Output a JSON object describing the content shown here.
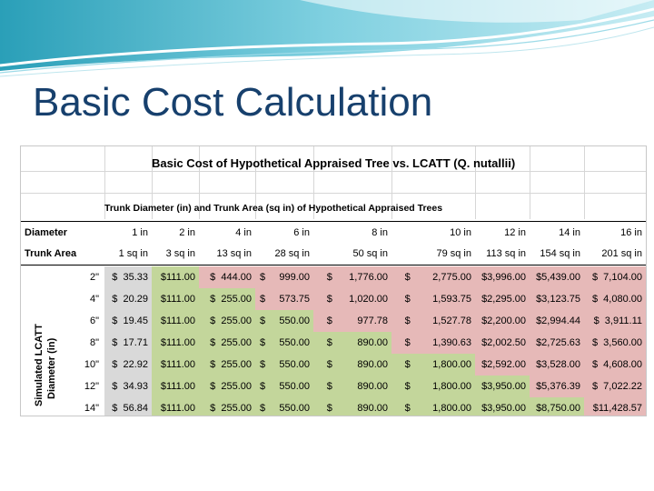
{
  "slide": {
    "title": "Basic Cost Calculation"
  },
  "table": {
    "title": "Basic Cost of Hypothetical Appraised Tree vs. LCATT (Q. nutallii)",
    "subtitle": "Trunk Diameter (in) and Trunk Area (sq in) of Hypothetical Appraised Trees",
    "diameter_label": "Diameter",
    "area_label": "Trunk Area",
    "row_axis_label_line1": "Simulated LCATT",
    "row_axis_label_line2": "Diameter (in)",
    "diameters": [
      "1 in",
      "2 in",
      "4 in",
      "6 in",
      "8 in",
      "10 in",
      "12 in",
      "14 in",
      "16 in"
    ],
    "areas": [
      "1 sq in",
      "3 sq in",
      "13 sq in",
      "28 sq in",
      "50 sq in",
      "79 sq in",
      "113 sq in",
      "154 sq in",
      "201 sq in"
    ],
    "rows": [
      {
        "label": "2\"",
        "cells": [
          "$  35.33",
          "$111.00",
          "$  444.00",
          "$     999.00",
          "$      1,776.00",
          "$        2,775.00",
          "$3,996.00",
          "$5,439.00",
          "$  7,104.00"
        ]
      },
      {
        "label": "4\"",
        "cells": [
          "$  20.29",
          "$111.00",
          "$  255.00",
          "$     573.75",
          "$      1,020.00",
          "$        1,593.75",
          "$2,295.00",
          "$3,123.75",
          "$  4,080.00"
        ]
      },
      {
        "label": "6\"",
        "cells": [
          "$  19.45",
          "$111.00",
          "$  255.00",
          "$     550.00",
          "$         977.78",
          "$        1,527.78",
          "$2,200.00",
          "$2,994.44",
          "$  3,911.11"
        ]
      },
      {
        "label": "8\"",
        "cells": [
          "$  17.71",
          "$111.00",
          "$  255.00",
          "$     550.00",
          "$         890.00",
          "$        1,390.63",
          "$2,002.50",
          "$2,725.63",
          "$  3,560.00"
        ]
      },
      {
        "label": "10\"",
        "cells": [
          "$  22.92",
          "$111.00",
          "$  255.00",
          "$     550.00",
          "$         890.00",
          "$        1,800.00",
          "$2,592.00",
          "$3,528.00",
          "$  4,608.00"
        ]
      },
      {
        "label": "12\"",
        "cells": [
          "$  34.93",
          "$111.00",
          "$  255.00",
          "$     550.00",
          "$         890.00",
          "$        1,800.00",
          "$3,950.00",
          "$5,376.39",
          "$  7,022.22"
        ]
      },
      {
        "label": "14\"",
        "cells": [
          "$  56.84",
          "$111.00",
          "$  255.00",
          "$     550.00",
          "$         890.00",
          "$        1,800.00",
          "$3,950.00",
          "$8,750.00",
          "$11,428.57"
        ]
      }
    ],
    "shading": [
      [
        "grey",
        "green",
        "pink",
        "pink",
        "pink",
        "pink",
        "pink",
        "pink",
        "pink"
      ],
      [
        "grey",
        "green",
        "green",
        "pink",
        "pink",
        "pink",
        "pink",
        "pink",
        "pink"
      ],
      [
        "grey",
        "green",
        "green",
        "green",
        "pink",
        "pink",
        "pink",
        "pink",
        "pink"
      ],
      [
        "grey",
        "green",
        "green",
        "green",
        "green",
        "pink",
        "pink",
        "pink",
        "pink"
      ],
      [
        "grey",
        "green",
        "green",
        "green",
        "green",
        "green",
        "pink",
        "pink",
        "pink"
      ],
      [
        "grey",
        "green",
        "green",
        "green",
        "green",
        "green",
        "green",
        "pink",
        "pink"
      ],
      [
        "grey",
        "green",
        "green",
        "green",
        "green",
        "green",
        "green",
        "green",
        "pink"
      ]
    ],
    "colors": {
      "pink": "#e6b9b8",
      "green": "#c3d69b",
      "grey": "#d9d9d9",
      "title": "#17406d"
    }
  }
}
